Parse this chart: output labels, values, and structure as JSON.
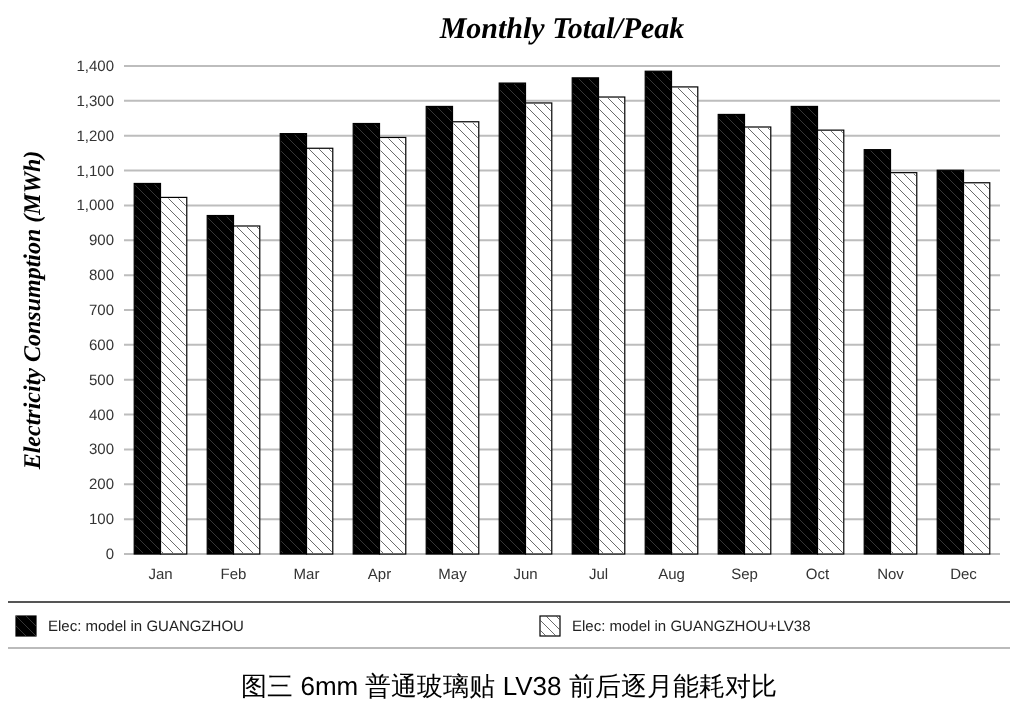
{
  "chart_data": {
    "type": "bar",
    "title": "Monthly Total/Peak",
    "ylabel": "Electricity Consumption (MWh)",
    "categories": [
      "Jan",
      "Feb",
      "Mar",
      "Apr",
      "May",
      "Jun",
      "Jul",
      "Aug",
      "Sep",
      "Oct",
      "Nov",
      "Dec"
    ],
    "series": [
      {
        "name": "Elec:  model in GUANGZHOU",
        "color": "#000000",
        "values": [
          1063,
          971,
          1206,
          1235,
          1284,
          1351,
          1366,
          1385,
          1261,
          1284,
          1160,
          1101
        ]
      },
      {
        "name": "Elec:  model in GUANGZHOU+LV38",
        "color": "#ffffff",
        "values": [
          1023,
          941,
          1164,
          1195,
          1240,
          1294,
          1311,
          1340,
          1225,
          1216,
          1094,
          1065
        ]
      }
    ],
    "ylim": [
      0,
      1400
    ],
    "yticks": [
      {
        "value": 0,
        "label": "0"
      },
      {
        "value": 100,
        "label": "100"
      },
      {
        "value": 200,
        "label": "200"
      },
      {
        "value": 300,
        "label": "300"
      },
      {
        "value": 400,
        "label": "400"
      },
      {
        "value": 500,
        "label": "500"
      },
      {
        "value": 600,
        "label": "600"
      },
      {
        "value": 700,
        "label": "700"
      },
      {
        "value": 800,
        "label": "800"
      },
      {
        "value": 900,
        "label": "900"
      },
      {
        "value": 1000,
        "label": "1,000"
      },
      {
        "value": 1100,
        "label": "1,100"
      },
      {
        "value": 1200,
        "label": "1,200"
      },
      {
        "value": 1300,
        "label": "1,300"
      },
      {
        "value": 1400,
        "label": "1,400"
      }
    ],
    "grid": "y",
    "legend": "bottom",
    "annotations": [
      "图三  6mm 普通玻璃贴 LV38 前后逐月能耗对比"
    ]
  }
}
